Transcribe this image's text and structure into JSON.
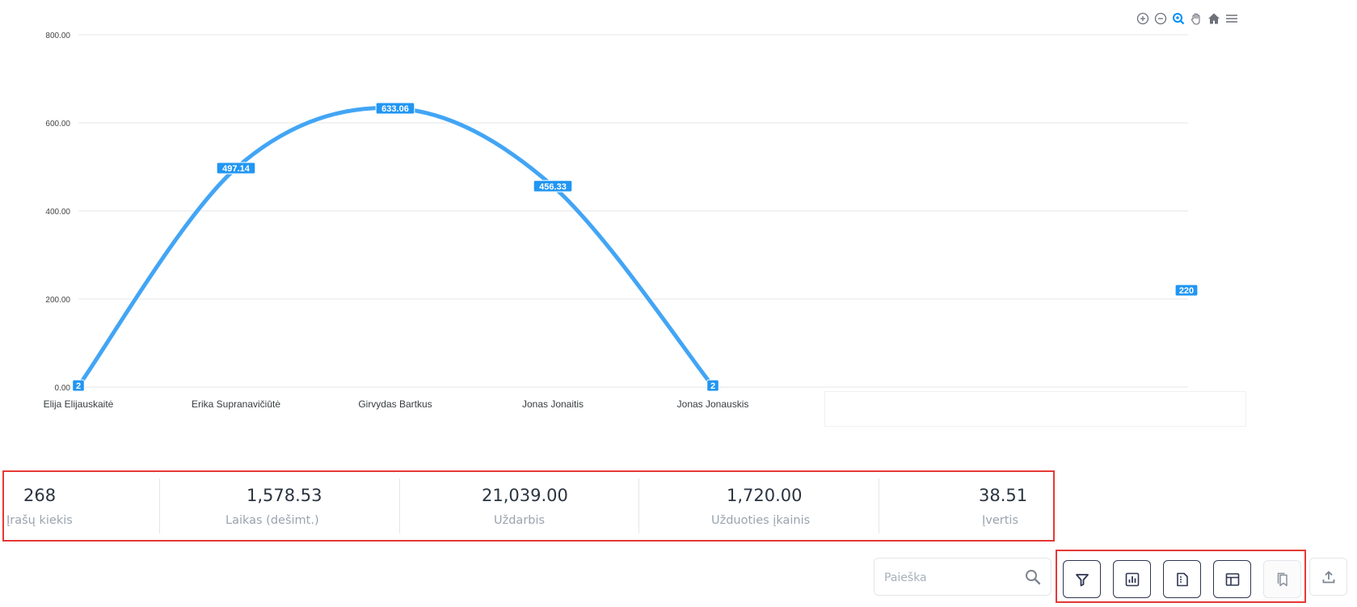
{
  "chart_data": {
    "type": "line",
    "title": "",
    "xlabel": "",
    "ylabel": "",
    "ylim": [
      0,
      800
    ],
    "yticks": [
      "0.00",
      "200.00",
      "400.00",
      "600.00",
      "800.00"
    ],
    "categories": [
      "Elija Elijauskaitė",
      "Erika Supranavičiūtė",
      "Girvydas Bartkus",
      "Jonas Jonaitis",
      "Jonas Jonauskis"
    ],
    "values": [
      2,
      497.14,
      633.06,
      456.33,
      2
    ],
    "data_labels": [
      "2",
      "497.14",
      "633.06",
      "456.33",
      "2"
    ],
    "extra_point": {
      "label": "220",
      "value": 220
    },
    "grid": true,
    "line_color": "#42a5f5",
    "label_bg": "#2196f3"
  },
  "toolbar_icons": [
    "zoom-in-icon",
    "zoom-out-icon",
    "zoom-selection-icon",
    "pan-hand-icon",
    "home-icon",
    "menu-icon"
  ],
  "stats": [
    {
      "value": "268",
      "label": "Įrašų kiekis"
    },
    {
      "value": "1,578.53",
      "label": "Laikas (dešimt.)"
    },
    {
      "value": "21,039.00",
      "label": "Uždarbis"
    },
    {
      "value": "1,720.00",
      "label": "Užduoties įkainis"
    },
    {
      "value": "38.51",
      "label": "Įvertis"
    }
  ],
  "search": {
    "placeholder": "Paieška",
    "value": ""
  },
  "colors": {
    "accent": "#42a5f5",
    "highlight_border": "#e53935",
    "button_border": "#2e3550"
  }
}
